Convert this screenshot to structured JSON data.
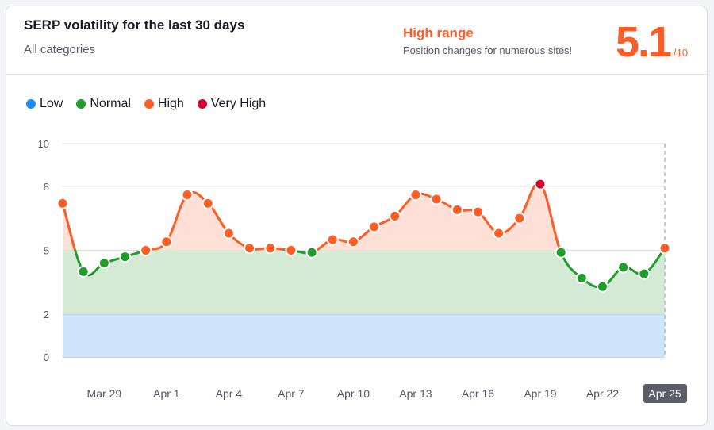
{
  "header": {
    "title": "SERP volatility for the last 30 days",
    "subtitle": "All categories",
    "range_label": "High range",
    "range_description": "Position changes for numerous sites!",
    "score": "5.1",
    "score_max": "/10"
  },
  "legend": [
    {
      "label": "Low",
      "color": "#1a8cff"
    },
    {
      "label": "Normal",
      "color": "#1f9d2a"
    },
    {
      "label": "High",
      "color": "#ff5c26"
    },
    {
      "label": "Very High",
      "color": "#d1002f"
    }
  ],
  "chart_data": {
    "type": "line",
    "title": "",
    "xlabel": "",
    "ylabel": "",
    "ylim": [
      0,
      10
    ],
    "y_ticks": [
      0,
      2,
      5,
      8,
      10
    ],
    "bands": [
      {
        "name": "Low",
        "from": 0,
        "to": 2,
        "color": "#cce5fa"
      },
      {
        "name": "Normal",
        "from": 2,
        "to": 5,
        "color": "#d4ead5"
      },
      {
        "name": "High",
        "from": 5,
        "to": 8,
        "color": "#ffdfd6"
      },
      {
        "name": "Very High",
        "from": 8,
        "to": 10,
        "color": "#ffd6dc"
      }
    ],
    "x": [
      "Mar 27",
      "Mar 28",
      "Mar 29",
      "Mar 30",
      "Mar 31",
      "Apr 1",
      "Apr 2",
      "Apr 3",
      "Apr 4",
      "Apr 5",
      "Apr 6",
      "Apr 7",
      "Apr 8",
      "Apr 9",
      "Apr 10",
      "Apr 11",
      "Apr 12",
      "Apr 13",
      "Apr 14",
      "Apr 15",
      "Apr 16",
      "Apr 17",
      "Apr 18",
      "Apr 19",
      "Apr 20",
      "Apr 21",
      "Apr 22",
      "Apr 23",
      "Apr 24",
      "Apr 25"
    ],
    "values": [
      7.2,
      4.0,
      4.4,
      4.7,
      5.0,
      5.4,
      7.6,
      7.2,
      5.8,
      5.1,
      5.1,
      5.0,
      4.9,
      5.5,
      5.4,
      6.1,
      6.6,
      7.6,
      7.4,
      6.9,
      6.8,
      5.8,
      6.5,
      8.1,
      4.9,
      3.7,
      3.3,
      4.2,
      3.9,
      5.1
    ],
    "x_tick_labels": [
      "Mar 29",
      "Apr 1",
      "Apr 4",
      "Apr 7",
      "Apr 10",
      "Apr 13",
      "Apr 16",
      "Apr 19",
      "Apr 22",
      "Apr 25"
    ],
    "selected_label": "Apr 25",
    "grid": true,
    "legend_position": "top-left"
  }
}
